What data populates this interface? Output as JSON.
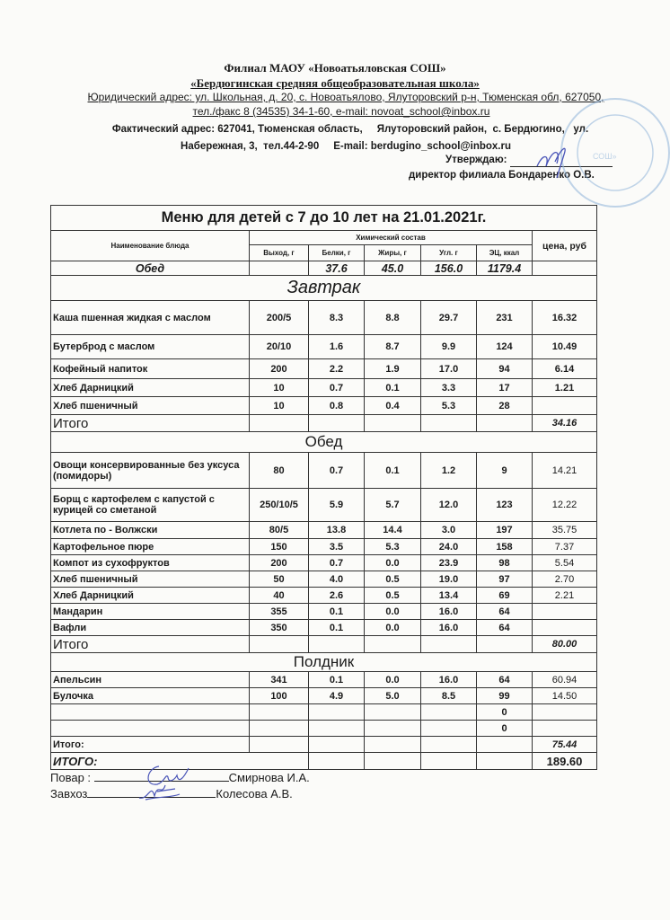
{
  "header": {
    "org_line1": "Филиал МАОУ «Новоатьяловская СОШ»",
    "org_line2": "«Бердюгинская средняя общеобразовательная школа»",
    "legal_address": "Юридический адрес: ул. Школьная, д. 20, с. Новоатьялово, Ялуторовский р-н, Тюменская обл, 627050,",
    "legal_contacts": "тел./факс 8 (34535) 34-1-60,  e-mail: novoat_school@inbox.ru",
    "actual_address_1": "Фактический адрес: 627041, Тюменская область,     Ялуторовский район,  с. Бердюгино,   ул.",
    "actual_address_2": "Набережная, 3,  тел.44-2-90     E-mail: berdugino_school@inbox.ru",
    "approve_label": "Утверждаю:",
    "director": "директор филиала Бондаренко О.В.",
    "stamp_text": "Бердюгинская СОШ"
  },
  "menu": {
    "title": "Меню для детей с 7 до 10 лет на 21.01.2021г.",
    "columns": {
      "name": "Наименование блюда",
      "chem_group": "Химический состав",
      "output": "Выход, г",
      "protein": "Белки, г",
      "fat": "Жиры, г",
      "carbs": "Угл. г",
      "energy": "ЭЦ, ккал",
      "price": "цена, руб"
    },
    "summary_row": {
      "label": "Обед",
      "protein": "37.6",
      "fat": "45.0",
      "carbs": "156.0",
      "energy": "1179.4"
    },
    "sections": [
      {
        "title": "Завтрак",
        "items": [
          {
            "name": "Каша пшенная жидкая с маслом",
            "output": "200/5",
            "protein": "8.3",
            "fat": "8.8",
            "carbs": "29.7",
            "energy": "231",
            "price": "16.32"
          },
          {
            "name": "Бутерброд  с маслом",
            "output": "20/10",
            "protein": "1.6",
            "fat": "8.7",
            "carbs": "9.9",
            "energy": "124",
            "price": "10.49"
          },
          {
            "name": "Кофейный напиток",
            "output": "200",
            "protein": "2.2",
            "fat": "1.9",
            "carbs": "17.0",
            "energy": "94",
            "price": "6.14"
          },
          {
            "name": "Хлеб Дарницкий",
            "output": "10",
            "protein": "0.7",
            "fat": "0.1",
            "carbs": "3.3",
            "energy": "17",
            "price": "1.21"
          },
          {
            "name": "Хлеб пшеничный",
            "output": "10",
            "protein": "0.8",
            "fat": "0.4",
            "carbs": "5.3",
            "energy": "28",
            "price": ""
          }
        ],
        "total_label": "Итого",
        "total_price": "34.16"
      },
      {
        "title": "Обед",
        "items": [
          {
            "name": "Овощи консервированные без уксуса (помидоры)",
            "output": "80",
            "protein": "0.7",
            "fat": "0.1",
            "carbs": "1.2",
            "energy": "9",
            "price": "14.21"
          },
          {
            "name": "Борщ с картофелем с капустой с курицей со сметаной",
            "output": "250/10/5",
            "protein": "5.9",
            "fat": "5.7",
            "carbs": "12.0",
            "energy": "123",
            "price": "12.22"
          },
          {
            "name": "Котлета по - Волжски",
            "output": "80/5",
            "protein": "13.8",
            "fat": "14.4",
            "carbs": "3.0",
            "energy": "197",
            "price": "35.75"
          },
          {
            "name": "Картофельное пюре",
            "output": "150",
            "protein": "3.5",
            "fat": "5.3",
            "carbs": "24.0",
            "energy": "158",
            "price": "7.37"
          },
          {
            "name": "Компот из сухофруктов",
            "output": "200",
            "protein": "0.7",
            "fat": "0.0",
            "carbs": "23.9",
            "energy": "98",
            "price": "5.54"
          },
          {
            "name": "Хлеб пшеничный",
            "output": "50",
            "protein": "4.0",
            "fat": "0.5",
            "carbs": "19.0",
            "energy": "97",
            "price": "2.70"
          },
          {
            "name": "Хлеб Дарницкий",
            "output": "40",
            "protein": "2.6",
            "fat": "0.5",
            "carbs": "13.4",
            "energy": "69",
            "price": "2.21"
          },
          {
            "name": "Мандарин",
            "output": "355",
            "protein": "0.1",
            "fat": "0.0",
            "carbs": "16.0",
            "energy": "64",
            "price": ""
          },
          {
            "name": "Вафли",
            "output": "350",
            "protein": "0.1",
            "fat": "0.0",
            "carbs": "16.0",
            "energy": "64",
            "price": ""
          }
        ],
        "total_label": "Итого",
        "total_price": "80.00"
      },
      {
        "title": "Полдник",
        "items": [
          {
            "name": "Апельсин",
            "output": "341",
            "protein": "0.1",
            "fat": "0.0",
            "carbs": "16.0",
            "energy": "64",
            "price": "60.94"
          },
          {
            "name": "Булочка",
            "output": "100",
            "protein": "4.9",
            "fat": "5.0",
            "carbs": "8.5",
            "energy": "99",
            "price": "14.50"
          },
          {
            "name": "",
            "output": "",
            "protein": "",
            "fat": "",
            "carbs": "",
            "energy": "0",
            "price": ""
          },
          {
            "name": "",
            "output": "",
            "protein": "",
            "fat": "",
            "carbs": "",
            "energy": "0",
            "price": ""
          }
        ],
        "total_label": "Итого:",
        "total_price": "75.44"
      }
    ],
    "grand_total_label": "ИТОГО:",
    "grand_total_price": "189.60"
  },
  "footer": {
    "cook_label": "Повар :",
    "cook_name": "Смирнова И.А.",
    "supply_label": "Завхоз",
    "supply_name": "Колесова А.В."
  },
  "colors": {
    "ink": "#1a1a1a",
    "stamp": "#8fb3d9",
    "signature": "#4a55b8"
  }
}
